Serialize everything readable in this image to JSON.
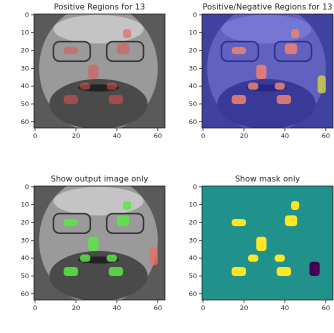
{
  "chart_data": [
    {
      "type": "image",
      "title": "Positive Regions for 13",
      "xlim": [
        -0.5,
        63.5
      ],
      "ylim": [
        63.5,
        -0.5
      ],
      "xticks": [
        0,
        20,
        40,
        60
      ],
      "yticks": [
        0,
        10,
        20,
        30,
        40,
        50,
        60
      ]
    },
    {
      "type": "image",
      "title": "Positive/Negative Regions for 13",
      "xlim": [
        -0.5,
        63.5
      ],
      "ylim": [
        63.5,
        -0.5
      ],
      "xticks": [
        0,
        20,
        40,
        60
      ],
      "yticks": [
        0,
        10,
        20,
        30,
        40,
        50,
        60
      ]
    },
    {
      "type": "image",
      "title": "Show output image only",
      "xlim": [
        -0.5,
        63.5
      ],
      "ylim": [
        63.5,
        -0.5
      ],
      "xticks": [
        0,
        20,
        40,
        60
      ],
      "yticks": [
        0,
        10,
        20,
        30,
        40,
        50,
        60
      ]
    },
    {
      "type": "image",
      "title": "Show mask only",
      "xlim": [
        -0.5,
        63.5
      ],
      "ylim": [
        63.5,
        -0.5
      ],
      "xticks": [
        0,
        20,
        40,
        60
      ],
      "yticks": [
        0,
        10,
        20,
        30,
        40,
        50,
        60
      ]
    }
  ]
}
